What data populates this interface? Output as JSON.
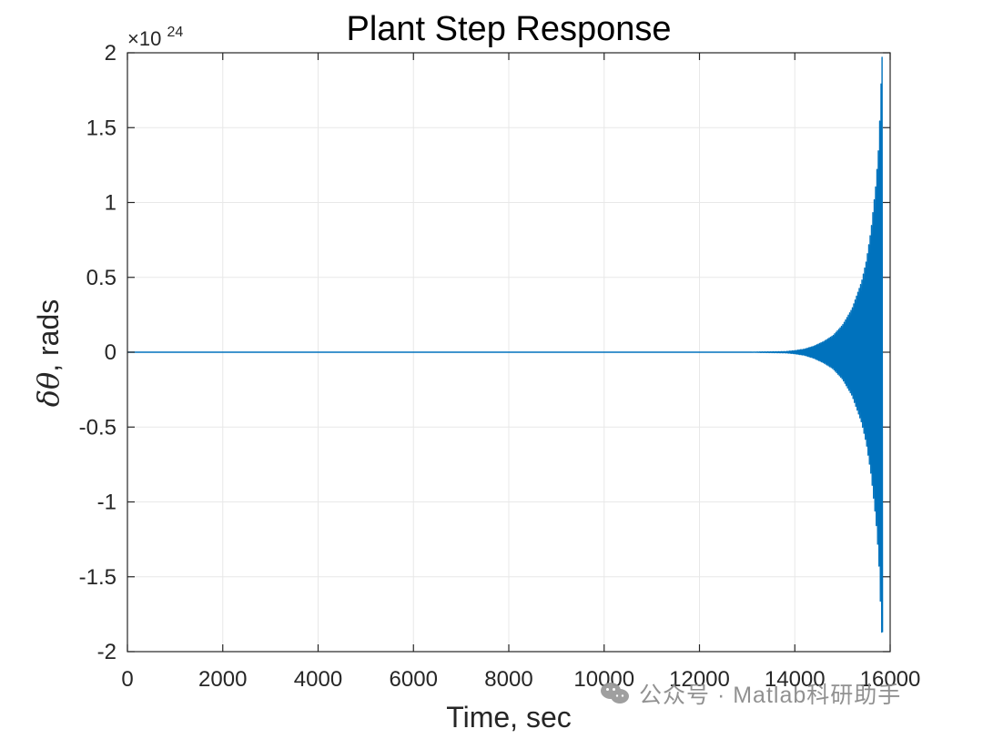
{
  "chart_data": {
    "type": "line",
    "title": "Plant Step Response",
    "xlabel": "Time, sec",
    "ylabel_symbol": "δθ",
    "ylabel_text": ", rads",
    "y_multiplier_base": "×10",
    "y_multiplier_exponent": "24",
    "xlim": [
      0,
      16000
    ],
    "ylim": [
      -2,
      2
    ],
    "x_ticks": [
      0,
      2000,
      4000,
      6000,
      8000,
      10000,
      12000,
      14000,
      16000
    ],
    "y_ticks": [
      -2,
      -1.5,
      -1,
      -0.5,
      0,
      0.5,
      1,
      1.5,
      2
    ],
    "x_tick_labels": [
      "0",
      "2000",
      "4000",
      "6000",
      "8000",
      "10000",
      "12000",
      "14000",
      "16000"
    ],
    "y_tick_labels": [
      "-2",
      "-1.5",
      "-1",
      "-0.5",
      "0",
      "0.5",
      "1",
      "1.5",
      "2"
    ],
    "grid": true,
    "series": [
      {
        "color": "#0072BD",
        "envelope": {
          "t": [
            0,
            13000,
            13800,
            14000,
            14200,
            14400,
            14600,
            14800,
            15000,
            15200,
            15400,
            15500,
            15600,
            15700,
            15760,
            15790,
            15810,
            15830
          ],
          "amplitude": [
            0,
            0,
            0.004,
            0.01,
            0.02,
            0.04,
            0.07,
            0.11,
            0.18,
            0.29,
            0.47,
            0.61,
            0.82,
            1.12,
            1.38,
            1.62,
            1.8,
            1.97
          ],
          "negative_min": -1.87,
          "positive_max": 1.97,
          "end_time": 15830
        }
      }
    ]
  },
  "watermark": {
    "icon": "wechat-icon",
    "text": "公众号 · Matlab科研助手"
  }
}
